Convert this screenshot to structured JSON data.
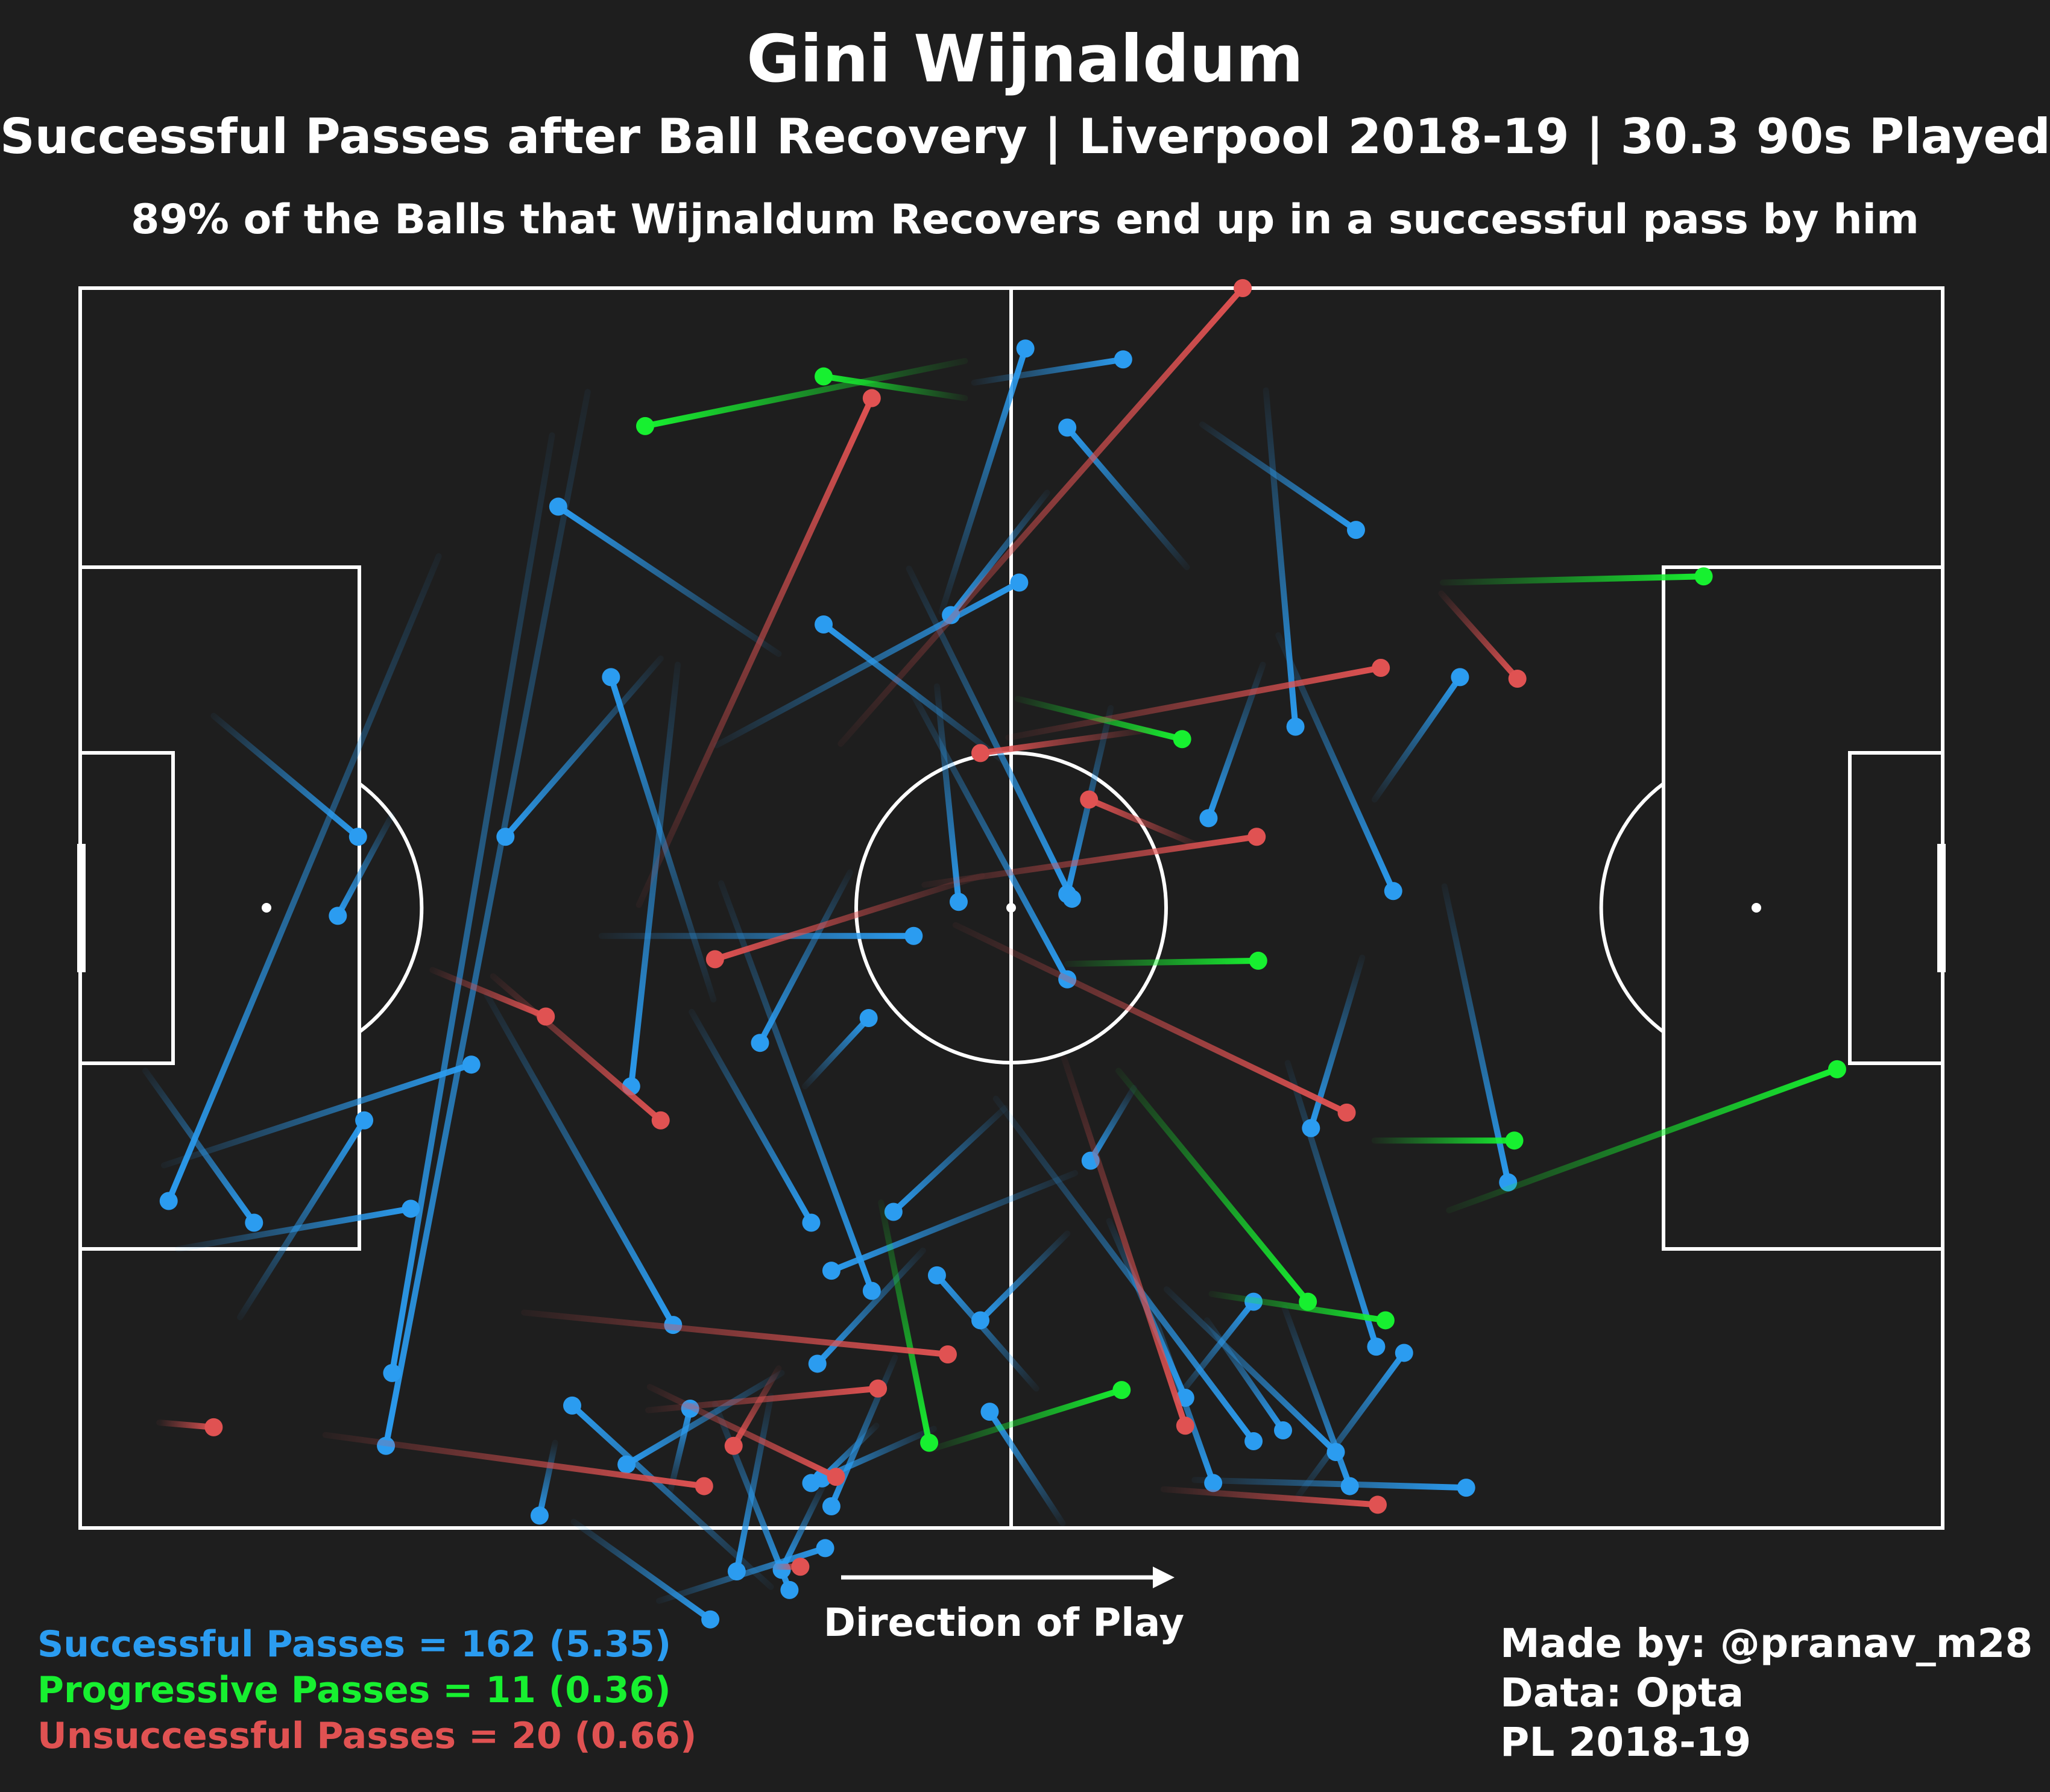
{
  "title": "Gini Wijnaldum",
  "subtitle": "Successful Passes after Ball Recovery | Liverpool 2018-19 | 30.3 90s Played",
  "note": "89% of the Balls that Wijnaldum Recovers end up in a successful pass by him",
  "direction_label": "Direction of Play",
  "legend": [
    {
      "label": "Successful Passes = 162 (5.35)",
      "color": "#2b9cf0"
    },
    {
      "label": "Progressive Passes = 11 (0.36)",
      "color": "#17f030"
    },
    {
      "label": "Unsuccessful Passes = 20 (0.66)",
      "color": "#e05252"
    }
  ],
  "credits": [
    "Made by: @pranav_m28",
    "Data: Opta",
    "PL 2018-19"
  ],
  "colors": {
    "background": "#1e1e1e",
    "pitch_lines": "#ffffff",
    "successful": "#2b9cf0",
    "progressive": "#17f030",
    "unsuccessful": "#e05252"
  },
  "chart_data": {
    "type": "scatter",
    "pitch": {
      "length": 120,
      "width": 80
    },
    "series": [
      {
        "name": "Successful Passes",
        "color": "#2b9cf0",
        "passes": [
          [
            23.1,
            17.3,
            5.7,
            58.9
          ],
          [
            30.4,
            9.5,
            20.1,
            70.0
          ],
          [
            32.7,
            6.7,
            19.7,
            74.7
          ],
          [
            41.3,
            38.4,
            51.0,
            64.7
          ],
          [
            33.6,
            41.8,
            53.7,
            41.8
          ],
          [
            39.4,
            46.7,
            47.1,
            60.3
          ],
          [
            41.0,
            29.5,
            60.5,
            19.0
          ],
          [
            45.0,
            23.6,
            30.8,
            14.1
          ],
          [
            37.4,
            23.9,
            27.4,
            35.4
          ],
          [
            40.8,
            45.9,
            34.2,
            25.1
          ],
          [
            46.7,
            51.5,
            50.8,
            47.1
          ],
          [
            53.6,
            26.1,
            63.6,
            44.6
          ],
          [
            54.3,
            62.1,
            47.5,
            69.4
          ],
          [
            55.0,
            73.6,
            47.1,
            77.1
          ],
          [
            45.2,
            70.0,
            35.2,
            75.9
          ],
          [
            44.5,
            83.8,
            31.7,
            72.1
          ],
          [
            52.5,
            69.0,
            48.4,
            78.6
          ],
          [
            64.1,
            57.1,
            48.4,
            63.4
          ],
          [
            51.3,
            73.4,
            47.8,
            76.8
          ],
          [
            68.8,
            65.2,
            73.0,
            77.1
          ],
          [
            59.0,
            52.3,
            75.6,
            74.4
          ],
          [
            66.3,
            60.2,
            71.2,
            71.6
          ],
          [
            70.0,
            64.6,
            80.9,
            75.1
          ],
          [
            63.3,
            79.7,
            58.6,
            72.5
          ],
          [
            71.8,
            76.9,
            89.3,
            77.4
          ],
          [
            78.5,
            77.9,
            85.3,
            68.7
          ],
          [
            72.6,
            66.6,
            77.5,
            73.7
          ],
          [
            77.6,
            65.8,
            81.8,
            77.3
          ],
          [
            82.6,
            43.2,
            79.3,
            54.2
          ],
          [
            77.8,
            50.0,
            83.5,
            68.3
          ],
          [
            87.9,
            38.6,
            92.0,
            57.7
          ],
          [
            83.4,
            33.0,
            88.9,
            25.1
          ],
          [
            77.2,
            22.4,
            84.6,
            38.9
          ],
          [
            71.3,
            18.0,
            63.6,
            9.0
          ],
          [
            72.3,
            8.8,
            82.2,
            15.6
          ],
          [
            76.2,
            24.3,
            72.7,
            34.2
          ],
          [
            66.4,
            27.1,
            63.6,
            39.1
          ],
          [
            59.6,
            30.6,
            47.9,
            21.7
          ],
          [
            55.2,
            25.7,
            56.6,
            39.6
          ],
          [
            49.6,
            37.7,
            43.8,
            48.7
          ],
          [
            67.9,
            51.6,
            65.1,
            56.3
          ],
          [
            59.6,
            52.9,
            52.4,
            59.6
          ],
          [
            63.6,
            61.0,
            58.0,
            66.6
          ],
          [
            57.6,
            6.1,
            67.2,
            4.6
          ],
          [
            62.3,
            13.2,
            56.1,
            21.1
          ],
          [
            55.5,
            20.9,
            60.9,
            3.9
          ],
          [
            53.4,
            18.1,
            63.9,
            39.4
          ],
          [
            76.4,
            6.6,
            78.3,
            28.3
          ],
          [
            44.5,
            71.5,
            42.3,
            82.8
          ],
          [
            47.9,
            77.2,
            45.2,
            82.7
          ],
          [
            40.9,
            72.0,
            45.7,
            84.0
          ],
          [
            38.0,
            77.7,
            39.3,
            72.3
          ],
          [
            37.3,
            84.7,
            48.0,
            81.3
          ],
          [
            30.6,
            74.5,
            29.6,
            79.2
          ],
          [
            31.8,
            79.6,
            40.6,
            85.9
          ],
          [
            20.1,
            34.0,
            16.6,
            40.5
          ],
          [
            8.6,
            27.6,
            17.9,
            35.4
          ],
          [
            10.3,
            66.4,
            18.3,
            53.7
          ],
          [
            5.4,
            56.6,
            25.2,
            50.1
          ],
          [
            6.3,
            62.0,
            21.3,
            59.4
          ],
          [
            4.2,
            50.5,
            11.2,
            60.3
          ],
          [
            26.2,
            45.6,
            38.2,
            66.9
          ],
          [
            38.5,
            24.3,
            35.5,
            51.5
          ],
          [
            61.6,
            71.0,
            55.2,
            63.7
          ],
          [
            70.6,
            71.7,
            75.6,
            65.4
          ]
        ]
      },
      {
        "name": "Progressive Passes",
        "color": "#17f030",
        "passes": [
          [
            57.0,
            4.7,
            36.4,
            8.9
          ],
          [
            57.0,
            7.1,
            47.9,
            5.7
          ],
          [
            60.4,
            26.5,
            71.0,
            29.1
          ],
          [
            63.6,
            43.6,
            75.9,
            43.4
          ],
          [
            87.8,
            19.0,
            104.6,
            18.6
          ],
          [
            72.9,
            64.9,
            84.1,
            66.6
          ],
          [
            66.9,
            50.5,
            79.1,
            65.4
          ],
          [
            83.4,
            55.0,
            92.4,
            55.0
          ],
          [
            88.2,
            59.5,
            113.2,
            50.4
          ],
          [
            51.6,
            59.0,
            54.7,
            74.5
          ],
          [
            54.9,
            74.9,
            67.1,
            71.1
          ]
        ]
      },
      {
        "name": "Unsuccessful Passes",
        "color": "#e05252",
        "passes": [
          [
            49.0,
            29.4,
            74.9,
            0.0
          ],
          [
            59.8,
            29.0,
            83.8,
            24.5
          ],
          [
            54.4,
            38.5,
            75.8,
            35.4
          ],
          [
            36.0,
            39.8,
            51.0,
            7.1
          ],
          [
            63.4,
            49.7,
            71.2,
            73.4
          ],
          [
            26.6,
            44.4,
            37.4,
            53.7
          ],
          [
            28.6,
            66.1,
            55.9,
            68.8
          ],
          [
            15.8,
            74.0,
            40.2,
            77.3
          ],
          [
            5.1,
            73.2,
            8.6,
            73.5
          ],
          [
            36.7,
            70.9,
            48.7,
            76.7
          ],
          [
            45.0,
            69.7,
            42.1,
            74.7
          ],
          [
            36.6,
            72.4,
            51.4,
            71.0
          ],
          [
            69.8,
            77.5,
            83.6,
            78.5
          ],
          [
            44.6,
            82.5,
            46.4,
            82.5
          ],
          [
            56.4,
            41.1,
            81.6,
            53.2
          ],
          [
            68.9,
            28.5,
            58.0,
            30.0
          ],
          [
            87.7,
            19.7,
            92.6,
            25.2
          ],
          [
            58.1,
            37.9,
            40.9,
            43.3
          ],
          [
            22.7,
            44.0,
            30.0,
            47.0
          ],
          [
            72.1,
            36.0,
            65.0,
            33.0
          ]
        ]
      }
    ]
  }
}
